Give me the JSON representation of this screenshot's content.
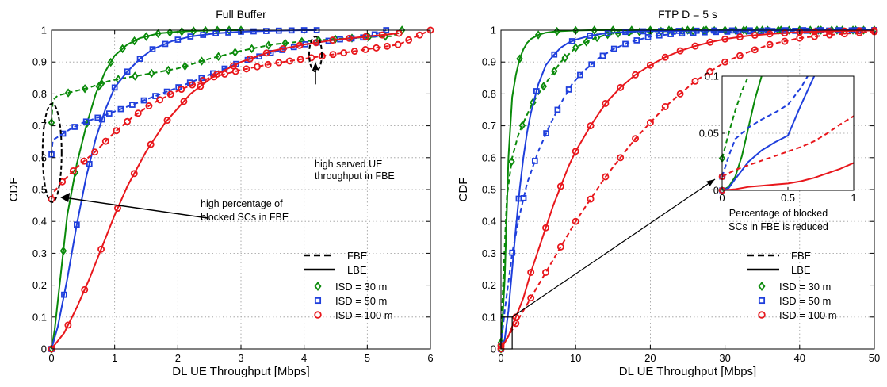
{
  "chart_data": [
    {
      "type": "line",
      "title": "Full Buffer",
      "xlabel": "DL UE Throughput [Mbps]",
      "ylabel": "CDF",
      "xlim": [
        0,
        6
      ],
      "ylim": [
        0,
        1
      ],
      "xticks": [
        "0",
        "1",
        "2",
        "3",
        "4",
        "5",
        "6"
      ],
      "yticks": [
        "0",
        "0.1",
        "0.2",
        "0.3",
        "0.4",
        "0.5",
        "0.6",
        "0.7",
        "0.8",
        "0.9",
        "1"
      ],
      "grid": true,
      "legend": {
        "placement": "bottom-right",
        "entries": [
          {
            "label": "FBE",
            "style": "dashed"
          },
          {
            "label": "LBE",
            "style": "solid"
          },
          {
            "label": "ISD =   30 m",
            "marker": "diamond",
            "color": "#0a8a0a"
          },
          {
            "label": "ISD =   50 m",
            "marker": "square",
            "color": "#1f3fdc"
          },
          {
            "label": "ISD = 100 m",
            "marker": "circle",
            "color": "#e8171c"
          }
        ]
      },
      "annotations": [
        {
          "lines": [
            "high served UE",
            "throughput in FBE"
          ]
        },
        {
          "lines": [
            "high percentage of",
            "blocked SCs in FBE"
          ]
        }
      ],
      "series": [
        {
          "isd": "30 m",
          "mode": "FBE",
          "color": "#0a8a0a",
          "marker": "diamond",
          "x": [
            0,
            0.02,
            0.1,
            0.3,
            0.6,
            0.9,
            1.3,
            1.6,
            2.0,
            2.5,
            3.0,
            3.5,
            4.0,
            4.5,
            5.0,
            5.4,
            5.55
          ],
          "y": [
            0.71,
            0.78,
            0.795,
            0.805,
            0.82,
            0.84,
            0.855,
            0.865,
            0.88,
            0.91,
            0.935,
            0.955,
            0.965,
            0.972,
            0.978,
            0.981,
            1.0
          ]
        },
        {
          "isd": "30 m",
          "mode": "LBE",
          "color": "#0a8a0a",
          "marker": "diamond",
          "x": [
            0,
            0.05,
            0.15,
            0.25,
            0.4,
            0.55,
            0.7,
            0.85,
            1.0,
            1.2,
            1.4,
            1.7,
            2.0,
            2.3,
            2.7,
            3.0
          ],
          "y": [
            0,
            0.06,
            0.24,
            0.42,
            0.58,
            0.7,
            0.8,
            0.87,
            0.92,
            0.955,
            0.975,
            0.99,
            0.995,
            0.998,
            1.0,
            1.0
          ]
        },
        {
          "isd": "50 m",
          "mode": "FBE",
          "color": "#1f3fdc",
          "marker": "square",
          "x": [
            0,
            0.02,
            0.1,
            0.3,
            0.5,
            0.8,
            1.2,
            1.6,
            2.0,
            2.5,
            3.0,
            3.5,
            4.0,
            4.5,
            5.0,
            5.3
          ],
          "y": [
            0.61,
            0.655,
            0.665,
            0.69,
            0.71,
            0.73,
            0.76,
            0.79,
            0.82,
            0.86,
            0.9,
            0.93,
            0.955,
            0.97,
            0.978,
            1.0
          ]
        },
        {
          "isd": "50 m",
          "mode": "LBE",
          "color": "#1f3fdc",
          "marker": "square",
          "x": [
            0,
            0.1,
            0.25,
            0.4,
            0.55,
            0.7,
            0.85,
            1.0,
            1.2,
            1.4,
            1.6,
            1.9,
            2.2,
            2.6,
            3.0,
            3.5,
            4.0,
            4.2
          ],
          "y": [
            0,
            0.07,
            0.22,
            0.39,
            0.54,
            0.66,
            0.75,
            0.82,
            0.87,
            0.91,
            0.94,
            0.965,
            0.98,
            0.99,
            0.995,
            0.998,
            1.0,
            1.0
          ]
        },
        {
          "isd": "100 m",
          "mode": "FBE",
          "color": "#e8171c",
          "marker": "circle",
          "x": [
            0,
            0.03,
            0.15,
            0.4,
            0.7,
            1.0,
            1.3,
            1.6,
            2.0,
            2.5,
            3.0,
            3.5,
            4.0,
            4.5,
            5.0,
            5.5,
            6.0
          ],
          "y": [
            0.47,
            0.49,
            0.52,
            0.57,
            0.62,
            0.68,
            0.73,
            0.77,
            0.81,
            0.85,
            0.875,
            0.895,
            0.91,
            0.925,
            0.94,
            0.955,
            1.0
          ]
        },
        {
          "isd": "100 m",
          "mode": "LBE",
          "color": "#e8171c",
          "marker": "circle",
          "x": [
            0,
            0.2,
            0.4,
            0.6,
            0.8,
            1.0,
            1.2,
            1.5,
            1.8,
            2.2,
            2.6,
            3.0,
            3.5,
            4.0,
            4.5,
            5.0,
            5.5
          ],
          "y": [
            0,
            0.05,
            0.13,
            0.22,
            0.32,
            0.42,
            0.51,
            0.62,
            0.71,
            0.8,
            0.86,
            0.9,
            0.935,
            0.955,
            0.97,
            0.98,
            0.99
          ]
        }
      ]
    },
    {
      "type": "line",
      "title": "FTP D = 5 s",
      "xlabel": "DL UE Throughput [Mbps]",
      "ylabel": "CDF",
      "xlim": [
        0,
        50
      ],
      "ylim": [
        0,
        1
      ],
      "xticks": [
        "0",
        "10",
        "20",
        "30",
        "40",
        "50"
      ],
      "yticks": [
        "0",
        "0.1",
        "0.2",
        "0.3",
        "0.4",
        "0.5",
        "0.6",
        "0.7",
        "0.8",
        "0.9",
        "1"
      ],
      "grid": true,
      "legend": {
        "placement": "bottom-right",
        "entries": [
          {
            "label": "FBE",
            "style": "dashed"
          },
          {
            "label": "LBE",
            "style": "solid"
          },
          {
            "label": "ISD =   30 m",
            "marker": "diamond",
            "color": "#0a8a0a"
          },
          {
            "label": "ISD =   50 m",
            "marker": "square",
            "color": "#1f3fdc"
          },
          {
            "label": "ISD = 100 m",
            "marker": "circle",
            "color": "#e8171c"
          }
        ]
      },
      "annotations": [
        {
          "lines": [
            "Percentage of blocked",
            "SCs in FBE is reduced"
          ]
        }
      ],
      "inset": {
        "xlim": [
          0,
          1
        ],
        "ylim": [
          0,
          0.1
        ],
        "xticks": [
          "0",
          "0.5",
          "1"
        ],
        "yticks": [
          "0",
          "0.05",
          "0.1"
        ],
        "series": [
          {
            "isd": "30 m",
            "mode": "FBE",
            "color": "#0a8a0a",
            "marker": "diamond",
            "x": [
              0,
              0.05,
              0.1,
              0.15,
              0.2
            ],
            "y": [
              0.028,
              0.05,
              0.07,
              0.087,
              0.1
            ]
          },
          {
            "isd": "30 m",
            "mode": "LBE",
            "color": "#0a8a0a",
            "marker": "diamond",
            "x": [
              0,
              0.05,
              0.1,
              0.15,
              0.2,
              0.25,
              0.3
            ],
            "y": [
              0,
              0.003,
              0.012,
              0.03,
              0.055,
              0.08,
              0.1
            ]
          },
          {
            "isd": "50 m",
            "mode": "FBE",
            "color": "#1f3fdc",
            "marker": "square",
            "x": [
              0,
              0.05,
              0.1,
              0.2,
              0.3,
              0.4,
              0.5,
              0.6,
              0.65
            ],
            "y": [
              0.012,
              0.03,
              0.045,
              0.055,
              0.062,
              0.068,
              0.075,
              0.09,
              0.1
            ]
          },
          {
            "isd": "50 m",
            "mode": "LBE",
            "color": "#1f3fdc",
            "marker": "square",
            "x": [
              0,
              0.05,
              0.1,
              0.2,
              0.3,
              0.4,
              0.5,
              0.6,
              0.7
            ],
            "y": [
              0,
              0.002,
              0.01,
              0.025,
              0.035,
              0.042,
              0.048,
              0.075,
              0.1
            ]
          },
          {
            "isd": "100 m",
            "mode": "FBE",
            "color": "#e8171c",
            "marker": "circle",
            "x": [
              0,
              0.1,
              0.2,
              0.3,
              0.4,
              0.5,
              0.6,
              0.7,
              0.8,
              0.9,
              1.0
            ],
            "y": [
              0.012,
              0.018,
              0.022,
              0.026,
              0.03,
              0.034,
              0.038,
              0.043,
              0.05,
              0.058,
              0.065
            ]
          },
          {
            "isd": "100 m",
            "mode": "LBE",
            "color": "#e8171c",
            "marker": "circle",
            "x": [
              0,
              0.1,
              0.2,
              0.3,
              0.4,
              0.5,
              0.6,
              0.7,
              0.8,
              0.9,
              1.0
            ],
            "y": [
              0,
              0.001,
              0.003,
              0.004,
              0.005,
              0.006,
              0.008,
              0.011,
              0.015,
              0.019,
              0.024
            ]
          }
        ]
      },
      "series": [
        {
          "isd": "30 m",
          "mode": "FBE",
          "color": "#0a8a0a",
          "marker": "diamond",
          "x": [
            0,
            0.3,
            0.8,
            1.5,
            2.3,
            3.2,
            4.2,
            5.3,
            6.5,
            8.0,
            10.0,
            12.0,
            14.0,
            16.5,
            20.0,
            25.0,
            30.0,
            40.0,
            50.0
          ],
          "y": [
            0.02,
            0.22,
            0.48,
            0.6,
            0.67,
            0.72,
            0.77,
            0.81,
            0.85,
            0.9,
            0.945,
            0.97,
            0.985,
            0.992,
            0.996,
            0.998,
            0.999,
            1.0,
            1.0
          ]
        },
        {
          "isd": "30 m",
          "mode": "LBE",
          "color": "#0a8a0a",
          "marker": "diamond",
          "x": [
            0,
            0.5,
            1.0,
            1.5,
            2.0,
            2.5,
            3.0,
            3.5,
            4.0,
            5.0,
            6.0,
            7.0,
            8.0,
            10.0,
            12.0,
            15.0,
            20.0,
            30.0,
            50.0
          ],
          "y": [
            0,
            0.22,
            0.6,
            0.79,
            0.86,
            0.91,
            0.94,
            0.96,
            0.972,
            0.985,
            0.992,
            0.995,
            0.997,
            0.999,
            1.0,
            1.0,
            1.0,
            1.0,
            1.0
          ]
        },
        {
          "isd": "50 m",
          "mode": "FBE",
          "color": "#1f3fdc",
          "marker": "square",
          "x": [
            0,
            0.5,
            1.5,
            2.5,
            3.5,
            5.0,
            6.5,
            8.0,
            9.5,
            11.0,
            13.0,
            15.0,
            17.0,
            20.0,
            23.0,
            27.0,
            30.0,
            35.0,
            40.0,
            45.0,
            50.0
          ],
          "y": [
            0.01,
            0.12,
            0.3,
            0.42,
            0.52,
            0.62,
            0.7,
            0.77,
            0.83,
            0.87,
            0.91,
            0.94,
            0.96,
            0.98,
            0.988,
            0.993,
            0.995,
            0.997,
            0.998,
            0.999,
            1.0
          ]
        },
        {
          "isd": "50 m",
          "mode": "LBE",
          "color": "#1f3fdc",
          "marker": "square",
          "x": [
            0,
            0.5,
            1.0,
            1.5,
            2.0,
            2.5,
            3.0,
            3.5,
            4.0,
            5.0,
            6.0,
            7.0,
            8.0,
            9.0,
            10.0,
            12.0,
            14.0,
            17.0,
            20.0,
            25.0,
            30.0,
            40.0,
            50.0
          ],
          "y": [
            0,
            0.03,
            0.12,
            0.25,
            0.38,
            0.5,
            0.6,
            0.68,
            0.74,
            0.83,
            0.89,
            0.92,
            0.945,
            0.96,
            0.97,
            0.983,
            0.99,
            0.995,
            0.997,
            0.998,
            0.999,
            1.0,
            1.0
          ]
        },
        {
          "isd": "100 m",
          "mode": "FBE",
          "color": "#e8171c",
          "marker": "circle",
          "x": [
            0,
            1.0,
            2.5,
            4.0,
            6.0,
            8.0,
            10.0,
            12.0,
            14.0,
            16.0,
            18.0,
            20.0,
            22.0,
            24.0,
            26.0,
            28.0,
            30.0,
            33.0,
            36.0,
            40.0,
            44.0,
            48.0,
            50.0
          ],
          "y": [
            0.01,
            0.04,
            0.1,
            0.16,
            0.24,
            0.32,
            0.4,
            0.47,
            0.54,
            0.6,
            0.66,
            0.71,
            0.76,
            0.8,
            0.84,
            0.87,
            0.9,
            0.93,
            0.955,
            0.975,
            0.985,
            0.992,
            0.995
          ]
        },
        {
          "isd": "100 m",
          "mode": "LBE",
          "color": "#e8171c",
          "marker": "circle",
          "x": [
            0,
            0.5,
            1.0,
            2.0,
            3.0,
            4.0,
            5.0,
            6.0,
            7.0,
            8.0,
            9.0,
            10.0,
            12.0,
            14.0,
            16.0,
            18.0,
            20.0,
            22.0,
            24.0,
            26.0,
            28.0,
            30.0,
            33.0,
            36.0,
            40.0,
            45.0,
            50.0
          ],
          "y": [
            0,
            0.02,
            0.04,
            0.1,
            0.16,
            0.24,
            0.31,
            0.38,
            0.45,
            0.51,
            0.57,
            0.62,
            0.7,
            0.77,
            0.82,
            0.86,
            0.89,
            0.915,
            0.935,
            0.95,
            0.962,
            0.972,
            0.982,
            0.988,
            0.994,
            0.997,
            0.999
          ]
        }
      ]
    }
  ]
}
